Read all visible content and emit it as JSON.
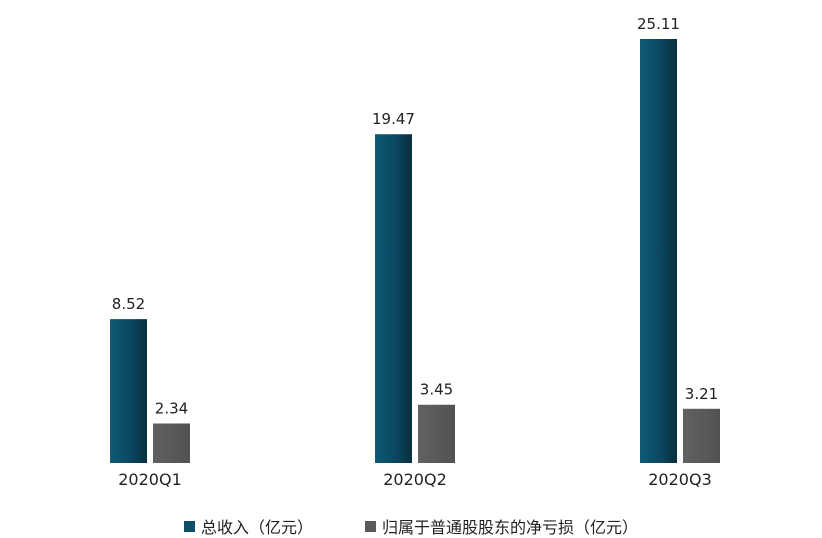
{
  "chart_data": {
    "type": "bar",
    "categories": [
      "2020Q1",
      "2020Q2",
      "2020Q3"
    ],
    "series": [
      {
        "name": "总收入（亿元）",
        "values": [
          8.52,
          19.47,
          25.11
        ],
        "color": "#0e4e66"
      },
      {
        "name": "归属于普通股股东的净亏损（亿元）",
        "values": [
          2.34,
          3.45,
          3.21
        ],
        "color": "#5a5a5a"
      }
    ],
    "title": "",
    "xlabel": "",
    "ylabel": "",
    "ylim": [
      0,
      25.11
    ],
    "grid": false,
    "legend": "bottom-center"
  }
}
